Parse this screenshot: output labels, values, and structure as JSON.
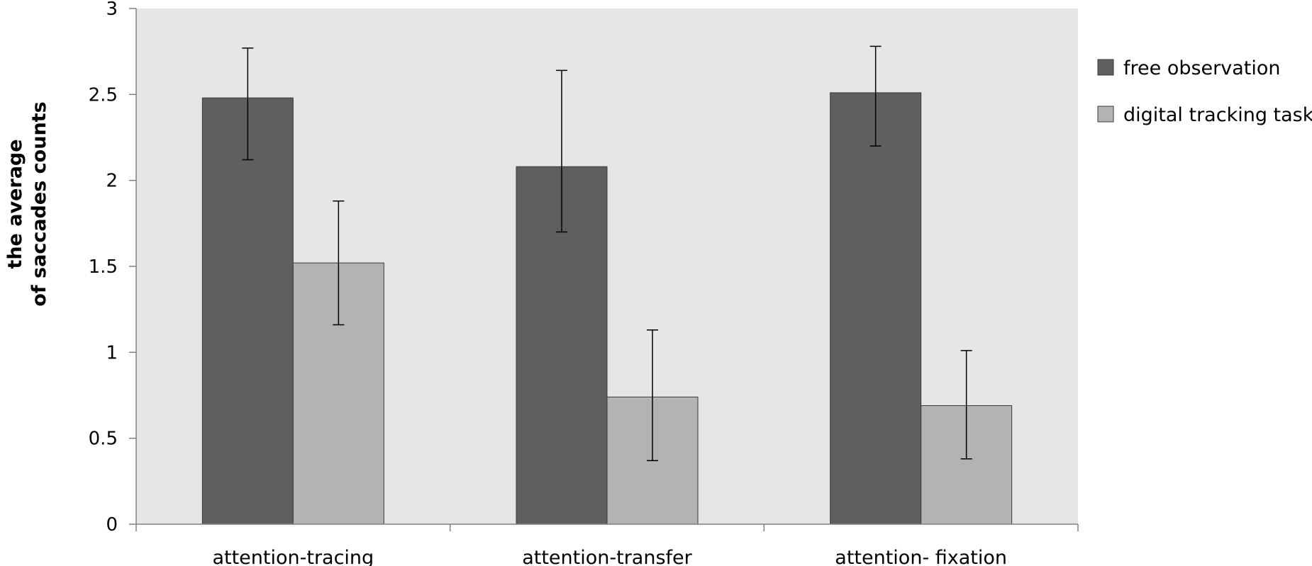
{
  "chart_data": {
    "type": "bar",
    "categories": [
      "attention-tracing",
      "attention-transfer",
      "attention- fixation"
    ],
    "series": [
      {
        "name": "free observation",
        "color": "#5f5f5f",
        "values": [
          2.48,
          2.08,
          2.51
        ],
        "error_low": [
          2.12,
          1.7,
          2.2
        ],
        "error_high": [
          2.77,
          2.64,
          2.78
        ]
      },
      {
        "name": "digital tracking task",
        "color": "#b3b3b3",
        "values": [
          1.52,
          0.74,
          0.69
        ],
        "error_low": [
          1.16,
          0.37,
          0.38
        ],
        "error_high": [
          1.88,
          1.13,
          1.01
        ]
      }
    ],
    "ylabel_lines": [
      "the  average",
      "of saccades counts"
    ],
    "xlabel": "",
    "ylim": [
      0,
      3
    ],
    "yticks": [
      "0",
      "0.5",
      "1",
      "1.5",
      "2",
      "2.5",
      "3"
    ],
    "legend_position": "right",
    "plot_background": "#e6e6e6",
    "grid": false
  }
}
